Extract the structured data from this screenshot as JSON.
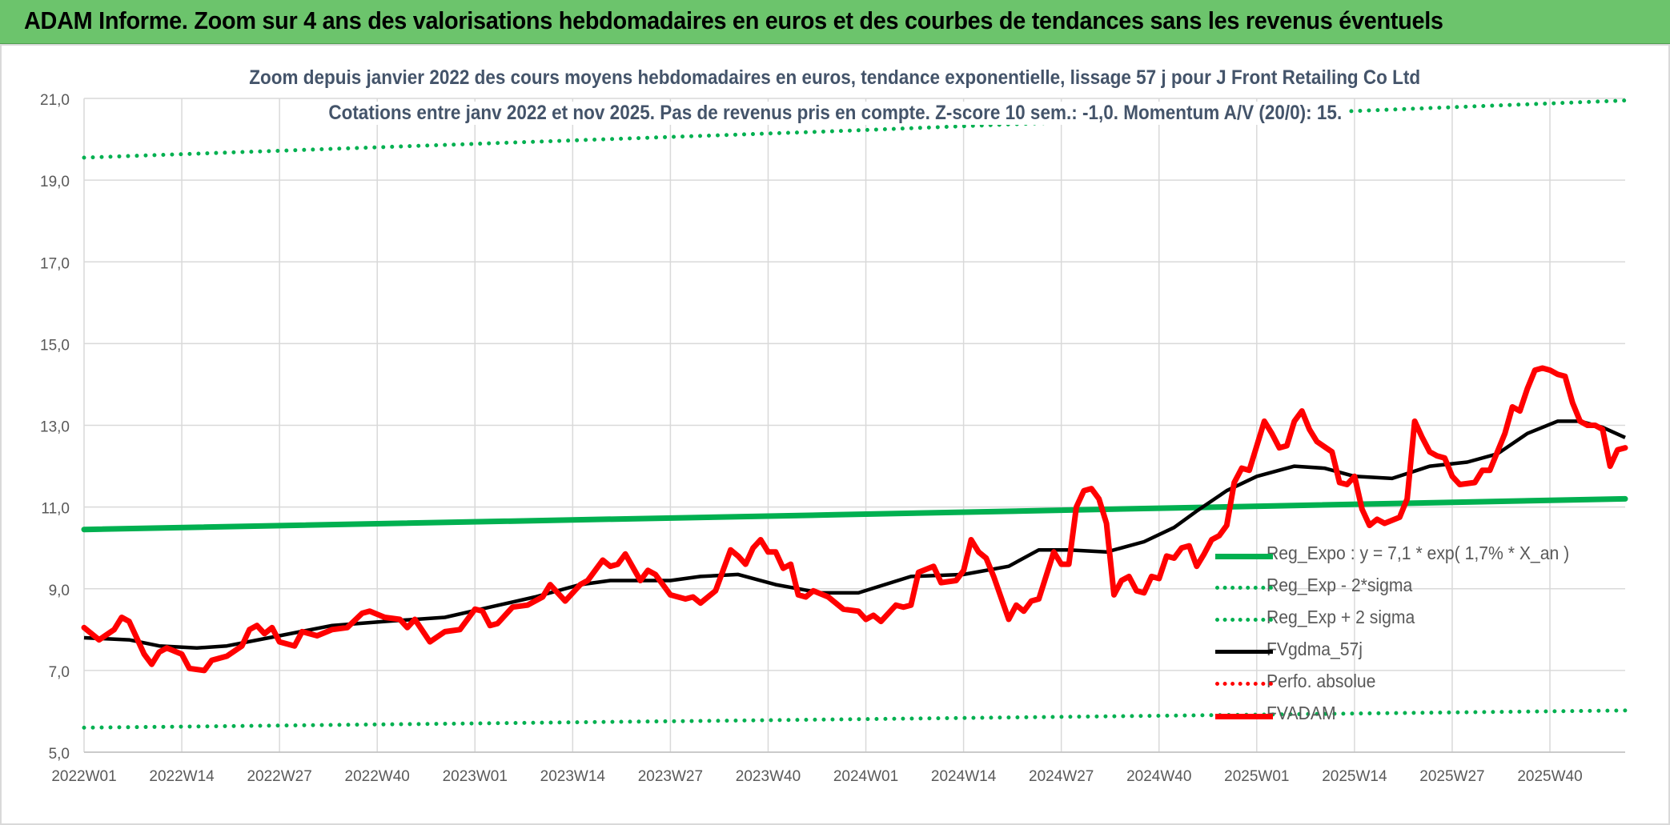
{
  "banner": {
    "title": "ADAM Informe. Zoom sur 4 ans des valorisations hebdomadaires en euros et des courbes de tendances sans les revenus éventuels"
  },
  "chart_data": {
    "type": "line",
    "title": "Zoom depuis janvier 2022 des cours moyens hebdomadaires en euros, tendance exponentielle, lissage 57 j pour J Front Retailing Co Ltd",
    "subtitle": "Cotations entre janv 2022 et nov 2025. Pas de revenus pris en compte. Z-score 10 sem.: -1,0. Momentum A/V (20/0): 15.",
    "xlabel": "",
    "ylabel": "",
    "ylim": [
      5,
      21
    ],
    "yticks": [
      "5,0",
      "7,0",
      "9,0",
      "11,0",
      "13,0",
      "15,0",
      "17,0",
      "19,0",
      "21,0"
    ],
    "x_tick_labels": [
      "2022W01",
      "2022W14",
      "2022W27",
      "2022W40",
      "2023W01",
      "2023W14",
      "2023W27",
      "2023W40",
      "2024W01",
      "2024W14",
      "2024W27",
      "2024W40",
      "2025W01",
      "2025W14",
      "2025W27",
      "2025W40"
    ],
    "grid": true,
    "legend_position": "right",
    "series": [
      {
        "name": "Reg_Expo : y = 7,1 * exp( 1,7% *  X_an )",
        "color": "#00b050",
        "style": "solid-thick",
        "points": [
          [
            0,
            10.45
          ],
          [
            100,
            10.81
          ],
          [
            205,
            11.2
          ]
        ]
      },
      {
        "name": "Reg_Exp - 2*sigma",
        "color": "#00b050",
        "style": "dotted",
        "points": [
          [
            0,
            5.6
          ],
          [
            100,
            5.8
          ],
          [
            205,
            6.02
          ]
        ]
      },
      {
        "name": "Reg_Exp + 2 sigma",
        "color": "#00b050",
        "style": "dotted",
        "points": [
          [
            0,
            19.55
          ],
          [
            100,
            20.2
          ],
          [
            205,
            20.95
          ]
        ]
      },
      {
        "name": "FVgdma_57j",
        "color": "#000000",
        "style": "solid",
        "points": [
          [
            0,
            7.8
          ],
          [
            6,
            7.75
          ],
          [
            10,
            7.6
          ],
          [
            15,
            7.55
          ],
          [
            19,
            7.6
          ],
          [
            26,
            7.85
          ],
          [
            33,
            8.1
          ],
          [
            40,
            8.2
          ],
          [
            48,
            8.3
          ],
          [
            54,
            8.55
          ],
          [
            60,
            8.8
          ],
          [
            66,
            9.1
          ],
          [
            70,
            9.2
          ],
          [
            78,
            9.2
          ],
          [
            82,
            9.3
          ],
          [
            87,
            9.35
          ],
          [
            92,
            9.1
          ],
          [
            98,
            8.9
          ],
          [
            103,
            8.9
          ],
          [
            110,
            9.3
          ],
          [
            117,
            9.35
          ],
          [
            123,
            9.55
          ],
          [
            127,
            9.95
          ],
          [
            131,
            9.95
          ],
          [
            136,
            9.9
          ],
          [
            141,
            10.15
          ],
          [
            145,
            10.5
          ],
          [
            148,
            10.9
          ],
          [
            152,
            11.4
          ],
          [
            156,
            11.75
          ],
          [
            161,
            12.0
          ],
          [
            165,
            11.95
          ],
          [
            169,
            11.75
          ],
          [
            174,
            11.7
          ],
          [
            179,
            12.0
          ],
          [
            184,
            12.1
          ],
          [
            188,
            12.3
          ],
          [
            192,
            12.8
          ],
          [
            196,
            13.1
          ],
          [
            199,
            13.1
          ],
          [
            202,
            12.95
          ],
          [
            205,
            12.7
          ]
        ]
      },
      {
        "name": "Perfo. absolue",
        "color": "#ff0000",
        "style": "dotted",
        "points": []
      },
      {
        "name": "FVADAM",
        "color": "#ff0000",
        "style": "solid-thick",
        "points": [
          [
            0,
            8.05
          ],
          [
            2,
            7.75
          ],
          [
            4,
            8.0
          ],
          [
            5,
            8.3
          ],
          [
            6,
            8.2
          ],
          [
            8,
            7.4
          ],
          [
            9,
            7.15
          ],
          [
            10,
            7.45
          ],
          [
            11,
            7.55
          ],
          [
            13,
            7.4
          ],
          [
            14,
            7.05
          ],
          [
            16,
            7.0
          ],
          [
            17,
            7.25
          ],
          [
            19,
            7.35
          ],
          [
            21,
            7.6
          ],
          [
            22,
            8.0
          ],
          [
            23,
            8.1
          ],
          [
            24,
            7.9
          ],
          [
            25,
            8.05
          ],
          [
            26,
            7.7
          ],
          [
            28,
            7.6
          ],
          [
            29,
            7.95
          ],
          [
            31,
            7.85
          ],
          [
            33,
            8.0
          ],
          [
            35,
            8.05
          ],
          [
            37,
            8.4
          ],
          [
            38,
            8.45
          ],
          [
            40,
            8.3
          ],
          [
            42,
            8.25
          ],
          [
            43,
            8.05
          ],
          [
            44,
            8.25
          ],
          [
            46,
            7.7
          ],
          [
            48,
            7.95
          ],
          [
            50,
            8.0
          ],
          [
            52,
            8.5
          ],
          [
            53,
            8.45
          ],
          [
            54,
            8.1
          ],
          [
            55,
            8.15
          ],
          [
            57,
            8.55
          ],
          [
            59,
            8.6
          ],
          [
            61,
            8.8
          ],
          [
            62,
            9.1
          ],
          [
            63,
            8.9
          ],
          [
            64,
            8.7
          ],
          [
            66,
            9.1
          ],
          [
            67,
            9.2
          ],
          [
            69,
            9.7
          ],
          [
            70,
            9.55
          ],
          [
            71,
            9.6
          ],
          [
            72,
            9.85
          ],
          [
            74,
            9.2
          ],
          [
            75,
            9.45
          ],
          [
            76,
            9.35
          ],
          [
            78,
            8.85
          ],
          [
            80,
            8.75
          ],
          [
            81,
            8.8
          ],
          [
            82,
            8.65
          ],
          [
            84,
            8.95
          ],
          [
            86,
            9.95
          ],
          [
            87,
            9.8
          ],
          [
            88,
            9.6
          ],
          [
            89,
            10.0
          ],
          [
            90,
            10.2
          ],
          [
            91,
            9.9
          ],
          [
            92,
            9.9
          ],
          [
            93,
            9.5
          ],
          [
            94,
            9.6
          ],
          [
            95,
            8.85
          ],
          [
            96,
            8.8
          ],
          [
            97,
            8.95
          ],
          [
            99,
            8.8
          ],
          [
            101,
            8.5
          ],
          [
            103,
            8.45
          ],
          [
            104,
            8.25
          ],
          [
            105,
            8.35
          ],
          [
            106,
            8.2
          ],
          [
            108,
            8.6
          ],
          [
            109,
            8.55
          ],
          [
            110,
            8.6
          ],
          [
            111,
            9.4
          ],
          [
            113,
            9.55
          ],
          [
            114,
            9.15
          ],
          [
            116,
            9.2
          ],
          [
            117,
            9.45
          ],
          [
            118,
            10.2
          ],
          [
            119,
            9.9
          ],
          [
            120,
            9.75
          ],
          [
            121,
            9.3
          ],
          [
            123,
            8.25
          ],
          [
            124,
            8.6
          ],
          [
            125,
            8.45
          ],
          [
            126,
            8.7
          ],
          [
            127,
            8.75
          ],
          [
            129,
            9.9
          ],
          [
            130,
            9.6
          ],
          [
            131,
            9.6
          ],
          [
            132,
            11.0
          ],
          [
            133,
            11.4
          ],
          [
            134,
            11.45
          ],
          [
            135,
            11.2
          ],
          [
            136,
            10.6
          ],
          [
            137,
            8.85
          ],
          [
            138,
            9.2
          ],
          [
            139,
            9.3
          ],
          [
            140,
            8.95
          ],
          [
            141,
            8.9
          ],
          [
            142,
            9.3
          ],
          [
            143,
            9.25
          ],
          [
            144,
            9.8
          ],
          [
            145,
            9.75
          ],
          [
            146,
            10.0
          ],
          [
            147,
            10.05
          ],
          [
            148,
            9.55
          ],
          [
            149,
            9.85
          ],
          [
            150,
            10.2
          ],
          [
            151,
            10.3
          ],
          [
            152,
            10.55
          ],
          [
            153,
            11.6
          ],
          [
            154,
            11.95
          ],
          [
            155,
            11.9
          ],
          [
            156,
            12.5
          ],
          [
            157,
            13.1
          ],
          [
            158,
            12.8
          ],
          [
            159,
            12.45
          ],
          [
            160,
            12.5
          ],
          [
            161,
            13.1
          ],
          [
            162,
            13.35
          ],
          [
            163,
            12.9
          ],
          [
            164,
            12.6
          ],
          [
            166,
            12.35
          ],
          [
            167,
            11.6
          ],
          [
            168,
            11.55
          ],
          [
            169,
            11.75
          ],
          [
            170,
            10.95
          ],
          [
            171,
            10.55
          ],
          [
            172,
            10.7
          ],
          [
            173,
            10.6
          ],
          [
            175,
            10.75
          ],
          [
            176,
            11.2
          ],
          [
            177,
            13.1
          ],
          [
            178,
            12.7
          ],
          [
            179,
            12.35
          ],
          [
            180,
            12.25
          ],
          [
            181,
            12.2
          ],
          [
            182,
            11.75
          ],
          [
            183,
            11.55
          ],
          [
            185,
            11.6
          ],
          [
            186,
            11.9
          ],
          [
            187,
            11.9
          ],
          [
            189,
            12.8
          ],
          [
            190,
            13.45
          ],
          [
            191,
            13.35
          ],
          [
            192,
            13.9
          ],
          [
            193,
            14.35
          ],
          [
            194,
            14.4
          ],
          [
            195,
            14.35
          ],
          [
            196,
            14.25
          ],
          [
            197,
            14.2
          ],
          [
            198,
            13.55
          ],
          [
            199,
            13.1
          ],
          [
            200,
            13.0
          ],
          [
            201,
            13.0
          ],
          [
            202,
            12.9
          ],
          [
            203,
            12.0
          ],
          [
            204,
            12.4
          ],
          [
            205,
            12.45
          ]
        ]
      }
    ]
  }
}
